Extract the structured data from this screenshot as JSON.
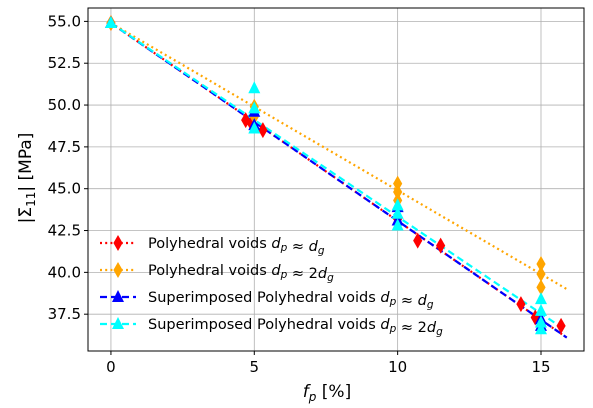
{
  "chart_data": {
    "type": "scatter",
    "title": "",
    "xlabel": "f_p [%]",
    "ylabel": "|Σ̄11| [MPa]",
    "xlim": [
      -0.8,
      16.5
    ],
    "ylim": [
      35.3,
      55.8
    ],
    "xticks": [
      0,
      5,
      10,
      15
    ],
    "xtick_labels": [
      "0",
      "5",
      "10",
      "15"
    ],
    "yticks": [
      37.5,
      40.0,
      42.5,
      45.0,
      47.5,
      50.0,
      52.5,
      55.0
    ],
    "ytick_labels": [
      "37.5",
      "40.0",
      "42.5",
      "45.0",
      "47.5",
      "50.0",
      "52.5",
      "55.0"
    ],
    "grid": true,
    "legend_position": "lower-left",
    "series": [
      {
        "name": "Polyhedral voids d_p ≈ d_g",
        "legend_label": {
          "prefix": "Polyhedral voids ",
          "math": "d_p ≈ d_g"
        },
        "color": "#ff0000",
        "marker": "thin_diamond",
        "line_style": "dotted",
        "points": [
          [
            0,
            54.9
          ],
          [
            4.7,
            49.1
          ],
          [
            4.9,
            48.9
          ],
          [
            5.3,
            48.5
          ],
          [
            10.0,
            43.2
          ],
          [
            10.7,
            41.9
          ],
          [
            11.5,
            41.6
          ],
          [
            14.3,
            38.1
          ],
          [
            14.8,
            37.3
          ],
          [
            15.7,
            36.8
          ]
        ],
        "fit": [
          [
            0,
            54.9
          ],
          [
            15.9,
            36.1
          ]
        ]
      },
      {
        "name": "Polyhedral voids d_p ≈ 2d_g",
        "legend_label": {
          "prefix": "Polyhedral voids ",
          "math": "d_p ≈ 2d_g"
        },
        "color": "#ffa500",
        "marker": "thin_diamond",
        "line_style": "dotted",
        "points": [
          [
            0,
            54.9
          ],
          [
            5.0,
            49.9
          ],
          [
            5.0,
            49.3
          ],
          [
            10.0,
            45.3
          ],
          [
            10.0,
            44.8
          ],
          [
            10.0,
            44.3
          ],
          [
            15.0,
            40.5
          ],
          [
            15.0,
            39.9
          ],
          [
            15.0,
            39.1
          ]
        ],
        "fit": [
          [
            0,
            54.9
          ],
          [
            15.9,
            39.0
          ]
        ]
      },
      {
        "name": "Superimposed Polyhedral voids d_p ≈ d_g",
        "legend_label": {
          "prefix": "Superimposed Polyhedral voids ",
          "math": "d_p ≈ d_g"
        },
        "color": "#0000ff",
        "marker": "triangle",
        "line_style": "dashed",
        "points": [
          [
            0,
            54.9
          ],
          [
            5.0,
            48.8
          ],
          [
            5.0,
            49.6
          ],
          [
            10.0,
            43.9
          ],
          [
            10.0,
            43.1
          ],
          [
            15.0,
            37.2
          ],
          [
            15.0,
            36.8
          ]
        ],
        "fit": [
          [
            0,
            54.9
          ],
          [
            15.9,
            36.1
          ]
        ]
      },
      {
        "name": "Superimposed Polyhedral voids d_p ≈ 2d_g",
        "legend_label": {
          "prefix": "Superimposed Polyhedral voids ",
          "math": "d_p ≈ 2d_g"
        },
        "color": "#00ffff",
        "marker": "triangle",
        "line_style": "dashed",
        "points": [
          [
            0,
            54.9
          ],
          [
            5.0,
            51.0
          ],
          [
            5.0,
            49.8
          ],
          [
            5.0,
            48.6
          ],
          [
            10.0,
            44.0
          ],
          [
            10.0,
            43.5
          ],
          [
            10.0,
            42.8
          ],
          [
            15.0,
            38.4
          ],
          [
            15.0,
            37.7
          ],
          [
            15.0,
            37.0
          ],
          [
            15.0,
            36.6
          ]
        ],
        "fit": [
          [
            0,
            54.9
          ],
          [
            15.9,
            36.5
          ]
        ]
      }
    ]
  }
}
